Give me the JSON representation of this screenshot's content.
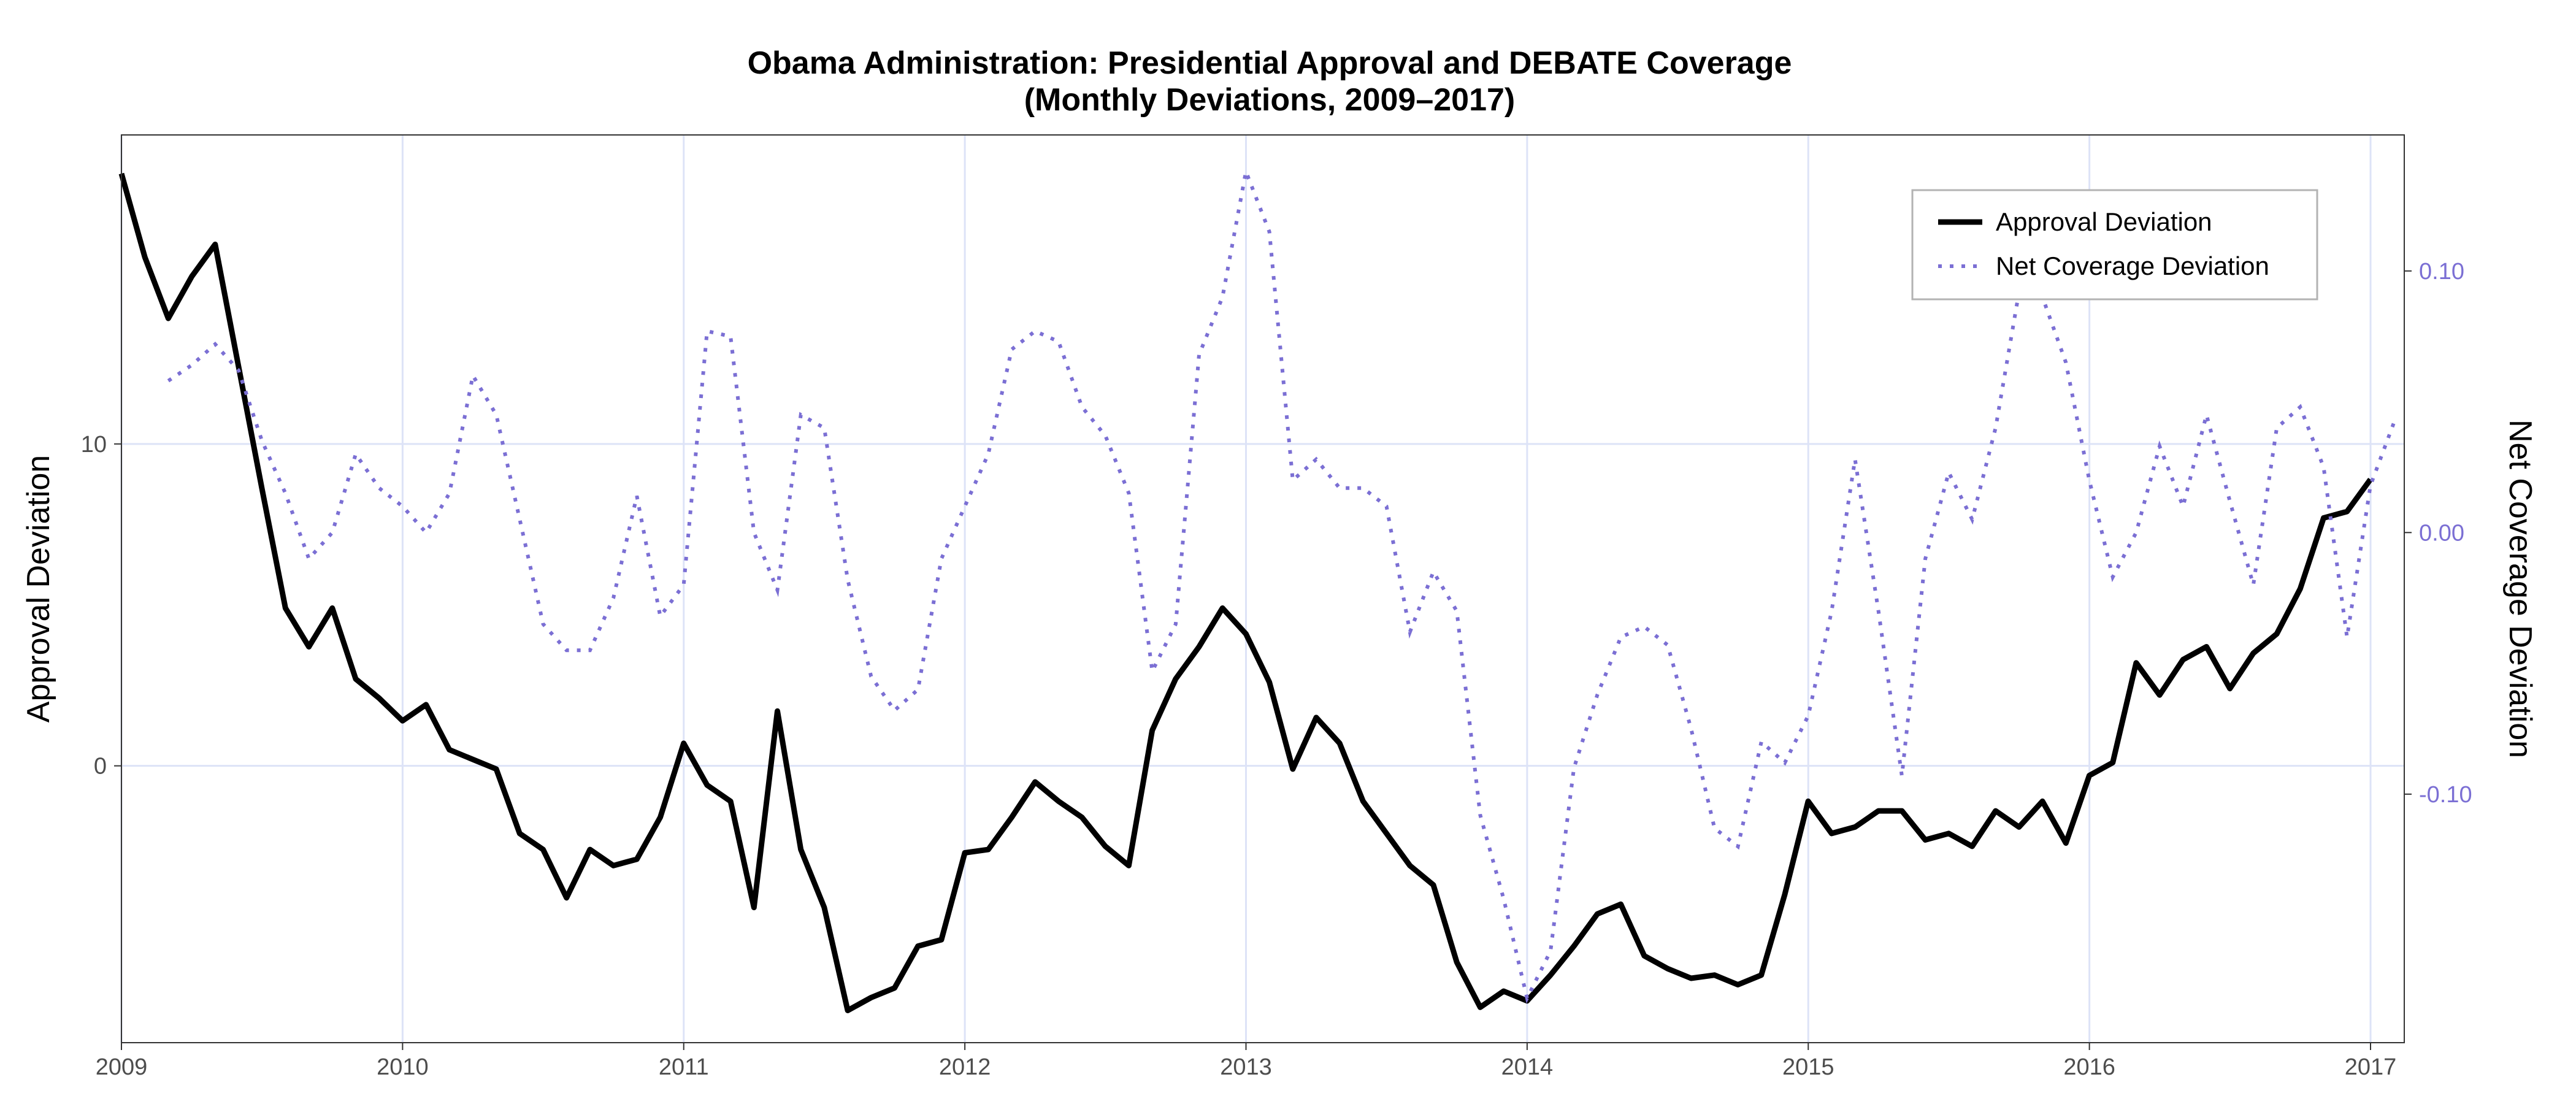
{
  "chart_data": {
    "type": "line",
    "title": "Obama Administration: Presidential Approval and DEBATE Coverage",
    "subtitle": "(Monthly Deviations, 2009–2017)",
    "ylabel": "Approval Deviation",
    "y2label": "Net Coverage Deviation",
    "xlabel": "",
    "xlim": [
      2009.0,
      2017.12
    ],
    "ylim": [
      -8.6,
      19.6
    ],
    "y2lim": [
      -0.195,
      0.152
    ],
    "x_ticks": [
      2009,
      2010,
      2011,
      2012,
      2013,
      2014,
      2015,
      2016,
      2017
    ],
    "x_tick_labels": [
      "2009",
      "2010",
      "2011",
      "2012",
      "2013",
      "2014",
      "2015",
      "2016",
      "2017"
    ],
    "y_ticks": [
      0,
      10
    ],
    "y_tick_labels": [
      "0",
      "10"
    ],
    "y2_ticks": [
      -0.1,
      0.0,
      0.1
    ],
    "y2_tick_labels": [
      "-0.10",
      "0.00",
      "0.10"
    ],
    "grid": true,
    "legend_position": "top-right",
    "colors": {
      "approval": "#000000",
      "coverage": "#7b6fd4",
      "grid": "#dde3f7",
      "right_axis": "#7b6fd4"
    },
    "series": [
      {
        "name": "Approval Deviation",
        "axis": "left",
        "style": "solid",
        "start": 2009.0,
        "step": 0.08333,
        "values": [
          18.4,
          15.8,
          13.9,
          15.2,
          16.2,
          12.4,
          8.6,
          4.9,
          3.7,
          4.9,
          2.7,
          2.1,
          1.4,
          1.9,
          0.5,
          0.2,
          -0.1,
          -2.1,
          -2.6,
          -4.1,
          -2.6,
          -3.1,
          -2.9,
          -1.6,
          0.7,
          -0.6,
          -1.1,
          -4.4,
          1.7,
          -2.6,
          -4.4,
          -7.6,
          -7.2,
          -6.9,
          -5.6,
          -5.4,
          -2.7,
          -2.6,
          -1.6,
          -0.5,
          -1.1,
          -1.6,
          -2.5,
          -3.1,
          1.1,
          2.7,
          3.7,
          4.9,
          4.1,
          2.6,
          -0.1,
          1.5,
          0.7,
          -1.1,
          -2.1,
          -3.1,
          -3.7,
          -6.1,
          -7.5,
          -7.0,
          -7.3,
          -6.5,
          -5.6,
          -4.6,
          -4.3,
          -5.9,
          -6.3,
          -6.6,
          -6.5,
          -6.8,
          -6.5,
          -4.0,
          -1.1,
          -2.1,
          -1.9,
          -1.4,
          -1.4,
          -2.3,
          -2.1,
          -2.5,
          -1.4,
          -1.9,
          -1.1,
          -2.4,
          -0.3,
          0.1,
          3.2,
          2.2,
          3.3,
          3.7,
          2.4,
          3.5,
          4.1,
          5.5,
          7.7,
          7.9,
          8.9
        ]
      },
      {
        "name": "Net Coverage Deviation",
        "axis": "right",
        "style": "dotted",
        "start": 2009.1667,
        "step": 0.08333,
        "values": [
          0.058,
          0.064,
          0.072,
          0.062,
          0.035,
          0.015,
          -0.01,
          0.0,
          0.03,
          0.017,
          0.01,
          0.0,
          0.015,
          0.06,
          0.045,
          0.005,
          -0.035,
          -0.045,
          -0.045,
          -0.025,
          0.014,
          -0.032,
          -0.02,
          0.077,
          0.075,
          0.0,
          -0.022,
          0.045,
          0.04,
          -0.018,
          -0.055,
          -0.068,
          -0.06,
          -0.01,
          0.01,
          0.03,
          0.07,
          0.077,
          0.073,
          0.048,
          0.037,
          0.015,
          -0.053,
          -0.035,
          0.068,
          0.09,
          0.138,
          0.115,
          0.02,
          0.028,
          0.017,
          0.017,
          0.01,
          -0.038,
          -0.015,
          -0.03,
          -0.108,
          -0.14,
          -0.178,
          -0.16,
          -0.09,
          -0.062,
          -0.04,
          -0.036,
          -0.043,
          -0.075,
          -0.113,
          -0.12,
          -0.08,
          -0.088,
          -0.07,
          -0.03,
          0.028,
          -0.03,
          -0.093,
          -0.01,
          0.023,
          0.005,
          0.04,
          0.092,
          0.09,
          0.065,
          0.02,
          -0.017,
          0.0,
          0.033,
          0.01,
          0.045,
          0.012,
          -0.02,
          0.04,
          0.048,
          0.025,
          -0.04,
          0.018,
          0.042
        ]
      }
    ]
  }
}
